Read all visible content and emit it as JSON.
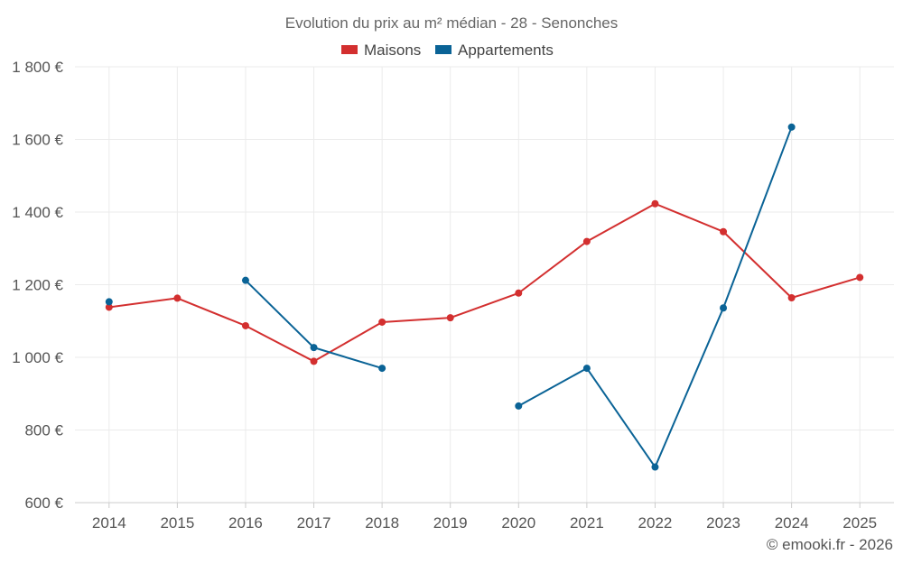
{
  "chart_data": {
    "type": "line",
    "title": "Evolution du prix au m² médian - 28 - Senonches",
    "xlabel": "",
    "ylabel": "",
    "categories": [
      "2014",
      "2015",
      "2016",
      "2017",
      "2018",
      "2019",
      "2020",
      "2021",
      "2022",
      "2023",
      "2024",
      "2025"
    ],
    "ylim": [
      600,
      1800
    ],
    "yticks": [
      600,
      800,
      1000,
      1200,
      1400,
      1600,
      1800
    ],
    "ytick_labels": [
      "600 €",
      "800 €",
      "1 000 €",
      "1 200 €",
      "1 400 €",
      "1 600 €",
      "1 800 €"
    ],
    "grid": true,
    "legend_position": "top-center",
    "series": [
      {
        "name": "Maisons",
        "color": "#d32f2f",
        "values": [
          1138,
          1163,
          1087,
          989,
          1097,
          1109,
          1177,
          1319,
          1423,
          1346,
          1164,
          1220
        ]
      },
      {
        "name": "Appartements",
        "color": "#0a6396",
        "values": [
          1153,
          null,
          1212,
          1027,
          970,
          null,
          866,
          970,
          698,
          1136,
          1634,
          null
        ]
      }
    ]
  },
  "credit": "© emooki.fr - 2026"
}
